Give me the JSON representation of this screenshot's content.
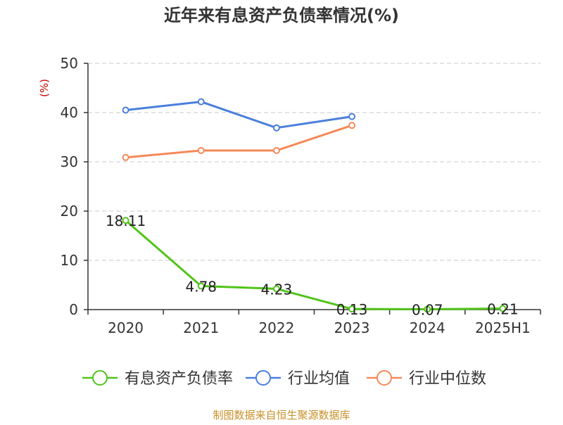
{
  "chart_data": {
    "type": "line",
    "title": "近年来有息资产负债率情况(%)",
    "ylabel": "(%)",
    "xlabel": "",
    "categories": [
      "2020",
      "2021",
      "2022",
      "2023",
      "2024",
      "2025H1"
    ],
    "ylim": [
      0,
      50
    ],
    "yticks": [
      0,
      10,
      20,
      30,
      40,
      50
    ],
    "grid": true,
    "legend_position": "bottom",
    "series": [
      {
        "name": "有息资产负债率",
        "color": "#52c41a",
        "values": [
          18.11,
          4.78,
          4.23,
          0.13,
          0.07,
          0.21
        ],
        "labels": [
          "18.11",
          "4.78",
          "4.23",
          "0.13",
          "0.07",
          "0.21"
        ]
      },
      {
        "name": "行业均值",
        "color": "#4a7fdc",
        "values": [
          40.5,
          42.2,
          36.9,
          39.2,
          null,
          null
        ]
      },
      {
        "name": "行业中位数",
        "color": "#f5895a",
        "values": [
          30.9,
          32.3,
          32.3,
          37.4,
          null,
          null
        ]
      }
    ]
  },
  "source": "制图数据来自恒生聚源数据库"
}
